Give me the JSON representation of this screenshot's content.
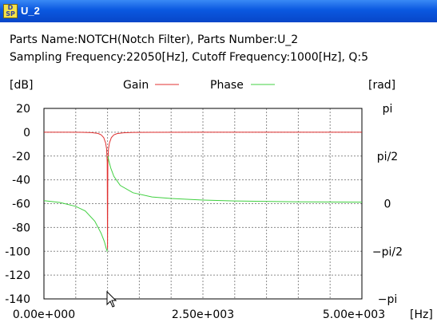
{
  "window": {
    "title": "U_2",
    "icon": "dsp-app-icon"
  },
  "info": {
    "line1": "Parts Name:NOTCH(Notch Filter), Parts Number:U_2",
    "line2": "Sampling Frequency:22050[Hz], Cutoff Frequency:1000[Hz], Q:5"
  },
  "chart_data": {
    "type": "line",
    "left_unit": "[dB]",
    "right_unit": "[rad]",
    "x_unit": "[Hz]",
    "xlim": [
      0,
      5000
    ],
    "ylim": [
      -140,
      20
    ],
    "y2lim": [
      -3.1416,
      3.1416
    ],
    "grid": true,
    "legend": "top",
    "x_tick_labels": [
      {
        "value": 0,
        "label": "0.00e+000"
      },
      {
        "value": 2500,
        "label": "2.50e+003"
      },
      {
        "value": 5000,
        "label": "5.00e+003"
      }
    ],
    "y_tick_labels": [
      "20",
      "0",
      "-20",
      "-40",
      "-60",
      "-80",
      "-100",
      "-120",
      "-140"
    ],
    "y_tick_values": [
      20,
      0,
      -20,
      -40,
      -60,
      -80,
      -100,
      -120,
      -140
    ],
    "y2_tick_labels": [
      "pi",
      "pi/2",
      "0",
      "−pi/2",
      "−pi"
    ],
    "y2_tick_values": [
      3.1416,
      1.5708,
      0,
      -1.5708,
      -3.1416
    ],
    "series": [
      {
        "name": "Gain",
        "color": "#e03030",
        "axis": "left",
        "x": [
          0,
          400,
          600,
          750,
          850,
          900,
          940,
          970,
          985,
          995,
          1000,
          1005,
          1015,
          1030,
          1060,
          1100,
          1150,
          1250,
          1400,
          1700,
          2500,
          3500,
          5000
        ],
        "y": [
          0,
          0,
          -0.1,
          -0.3,
          -1,
          -2.2,
          -4.5,
          -9,
          -14,
          -25,
          -98,
          -25,
          -14,
          -9,
          -4.5,
          -2.2,
          -1.2,
          -0.5,
          -0.2,
          -0.05,
          0,
          0,
          0
        ]
      },
      {
        "name": "Phase",
        "color": "#40d040",
        "axis": "right",
        "x": [
          0,
          250,
          500,
          650,
          800,
          900,
          950,
          980,
          995,
          1000,
          1005,
          1020,
          1050,
          1100,
          1200,
          1400,
          1700,
          2000,
          2500,
          3000,
          4000,
          5000
        ],
        "y": [
          0.1,
          0.04,
          -0.09,
          -0.24,
          -0.58,
          -0.98,
          -1.25,
          -1.48,
          -1.57,
          -1.57,
          1.57,
          1.42,
          1.18,
          0.9,
          0.6,
          0.36,
          0.22,
          0.17,
          0.12,
          0.09,
          0.06,
          0.05
        ]
      }
    ]
  }
}
